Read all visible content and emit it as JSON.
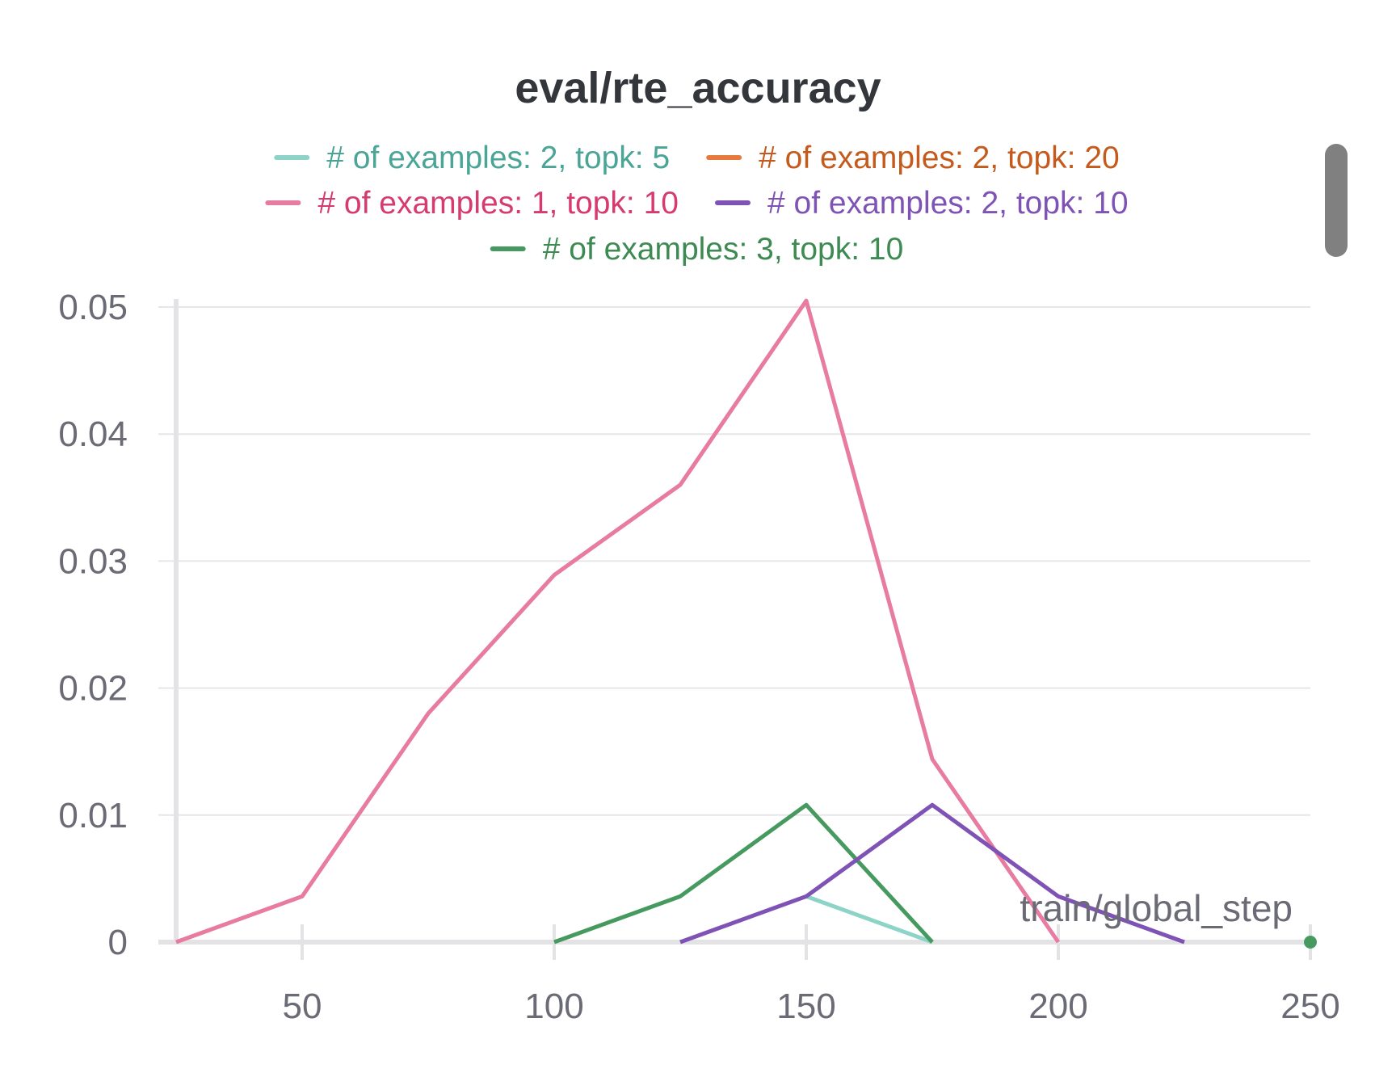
{
  "chart_data": {
    "type": "line",
    "title": "eval/rte_accuracy",
    "xlabel": "train/global_step",
    "ylabel": "",
    "xlim": [
      25,
      250
    ],
    "ylim": [
      0,
      0.05
    ],
    "x_ticks": [
      50,
      100,
      150,
      200,
      250
    ],
    "y_ticks": [
      0,
      0.01,
      0.02,
      0.03,
      0.04,
      0.05
    ],
    "x_tick_labels": [
      "50",
      "100",
      "150",
      "200",
      "250"
    ],
    "y_tick_labels": [
      "0",
      "0.01",
      "0.02",
      "0.03",
      "0.04",
      "0.05"
    ],
    "grid": true,
    "legend_position": "top",
    "series": [
      {
        "name": "# of examples: 1, topk: 10",
        "color": "#e87ba0",
        "label_color": "#d63a6e",
        "x": [
          25,
          50,
          75,
          100,
          125,
          150,
          175,
          200
        ],
        "y": [
          0,
          0.0036,
          0.018,
          0.0289,
          0.036,
          0.0505,
          0.0144,
          0
        ]
      },
      {
        "name": "# of examples: 2, topk: 5",
        "color": "#8dd3c7",
        "label_color": "#4aa597",
        "x": [
          150,
          175
        ],
        "y": [
          0.0036,
          0
        ]
      },
      {
        "name": "# of examples: 2, topk: 10",
        "color": "#7e53b5",
        "label_color": "#7e53b5",
        "x": [
          125,
          150,
          175,
          200,
          225
        ],
        "y": [
          0,
          0.0036,
          0.0108,
          0.0036,
          0
        ]
      },
      {
        "name": "# of examples: 3, topk: 10",
        "color": "#479a5f",
        "label_color": "#3d8a52",
        "x": [
          100,
          125,
          150,
          175
        ],
        "y": [
          0,
          0.0036,
          0.0108,
          0
        ]
      },
      {
        "name": "# of examples: 2, topk: 20",
        "color": "#e87a3e",
        "label_color": "#c45a1c",
        "x": [],
        "y": []
      }
    ],
    "legend": [
      [
        "# of examples: 2, topk: 5",
        "# of examples: 2, topk: 20"
      ],
      [
        "# of examples: 1, topk: 10",
        "# of examples: 2, topk: 10"
      ],
      [
        "# of examples: 3, topk: 10"
      ]
    ],
    "end_marker": {
      "x": 250,
      "y": 0,
      "color": "#479a5f"
    }
  }
}
